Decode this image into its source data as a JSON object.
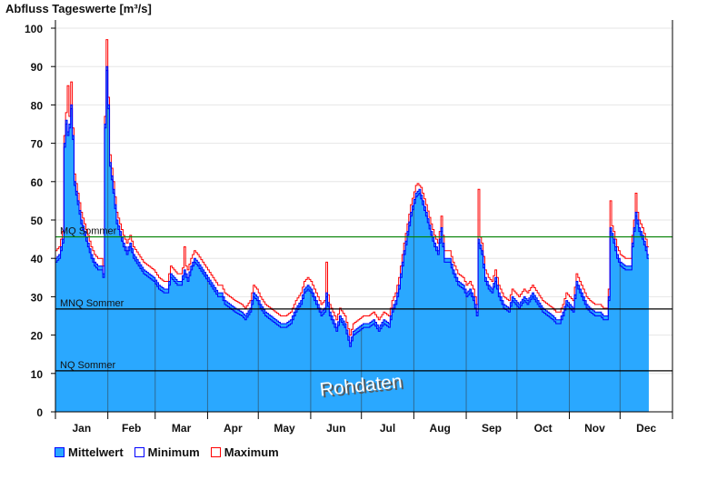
{
  "chart_data": {
    "type": "area",
    "title": "Abfluss Tageswerte [m³/s]",
    "ylim": [
      0,
      100
    ],
    "yticks": [
      0,
      10,
      20,
      30,
      40,
      50,
      60,
      70,
      80,
      90,
      100
    ],
    "grid": true,
    "x_unit": "day of year",
    "month_labels": [
      "Jan",
      "Feb",
      "Mar",
      "Apr",
      "May",
      "Jun",
      "Jul",
      "Aug",
      "Sep",
      "Oct",
      "Nov",
      "Dec"
    ],
    "month_starts": [
      0,
      31,
      59,
      90,
      120,
      151,
      181,
      212,
      243,
      273,
      304,
      334,
      365
    ],
    "series": [
      {
        "name": "Mittelwert",
        "color": "#2aa8ff",
        "x": [
          0,
          2,
          4,
          5,
          6,
          7,
          8,
          9,
          10,
          11,
          13,
          15,
          17,
          19,
          21,
          23,
          25,
          27,
          28,
          29,
          30,
          31,
          32,
          34,
          36,
          38,
          40,
          42,
          44,
          46,
          49,
          52,
          55,
          58,
          61,
          64,
          66,
          68,
          70,
          72,
          74,
          76,
          78,
          80,
          82,
          84,
          87,
          90,
          93,
          96,
          98,
          100,
          103,
          106,
          110,
          112,
          115,
          117,
          119,
          121,
          124,
          127,
          130,
          133,
          136,
          139,
          142,
          145,
          147,
          149,
          151,
          153,
          155,
          157,
          159,
          160,
          162,
          164,
          166,
          168,
          171,
          174,
          176,
          179,
          182,
          185,
          188,
          191,
          194,
          197,
          199,
          201,
          203,
          206,
          208,
          210,
          213,
          215,
          217,
          219,
          222,
          224,
          226,
          228,
          230,
          233,
          235,
          238,
          241,
          243,
          245,
          247,
          249,
          250,
          252,
          254,
          256,
          258,
          260,
          262,
          265,
          268,
          270,
          272,
          274,
          277,
          279,
          282,
          285,
          288,
          291,
          294,
          296,
          298,
          300,
          302,
          304,
          306,
          308,
          310,
          312,
          314,
          316,
          319,
          322,
          324,
          326,
          327,
          328,
          330,
          332,
          334,
          337,
          340,
          341,
          343,
          345,
          347,
          349,
          350
        ],
        "values": [
          40,
          41,
          45,
          70,
          76,
          73,
          75,
          80,
          72,
          60,
          55,
          50,
          47,
          44,
          41,
          39,
          38,
          38,
          36,
          75,
          90,
          80,
          65,
          58,
          50,
          47,
          44,
          42,
          44,
          41,
          39,
          37,
          36,
          35,
          33,
          32,
          32,
          36,
          35,
          34,
          34,
          37,
          35,
          38,
          40,
          39,
          37,
          35,
          33,
          31,
          31,
          29,
          28,
          27,
          26,
          25,
          27,
          31,
          30,
          28,
          26,
          25,
          24,
          23,
          23,
          24,
          27,
          29,
          32,
          33,
          32,
          30,
          28,
          26,
          27,
          31,
          26,
          24,
          22,
          25,
          23,
          18,
          21,
          22,
          23,
          23,
          24,
          22,
          24,
          23,
          27,
          29,
          33,
          42,
          47,
          52,
          57,
          58,
          55,
          52,
          47,
          44,
          42,
          48,
          40,
          40,
          37,
          34,
          33,
          31,
          32,
          30,
          26,
          45,
          42,
          35,
          33,
          32,
          35,
          31,
          28,
          27,
          30,
          29,
          28,
          30,
          29,
          31,
          29,
          27,
          26,
          25,
          24,
          24,
          26,
          29,
          28,
          27,
          34,
          32,
          30,
          28,
          27,
          26,
          26,
          25,
          25,
          30,
          48,
          45,
          41,
          39,
          38,
          38,
          44,
          52,
          48,
          46,
          43,
          41
        ]
      },
      {
        "name": "Minimum",
        "color": "#0000ff",
        "offset": -1
      },
      {
        "name": "Maximum",
        "color": "#ff0000",
        "offset": 2,
        "spikes": [
          [
            9,
            86
          ],
          [
            30,
            97
          ],
          [
            76,
            43
          ],
          [
            250,
            58
          ],
          [
            228,
            51
          ],
          [
            160,
            39
          ],
          [
            328,
            55
          ],
          [
            343,
            57
          ],
          [
            215,
            59
          ],
          [
            7,
            85
          ]
        ]
      }
    ],
    "reference_lines": [
      {
        "label": "MQ Sommer",
        "value": 45.6,
        "color": "#008000"
      },
      {
        "label": "MNQ Sommer",
        "value": 26.8,
        "color": "#000000"
      },
      {
        "label": "NQ Sommer",
        "value": 10.7,
        "color": "#000000"
      }
    ],
    "watermark": "Rohdaten",
    "legend_position": "bottom-left"
  }
}
